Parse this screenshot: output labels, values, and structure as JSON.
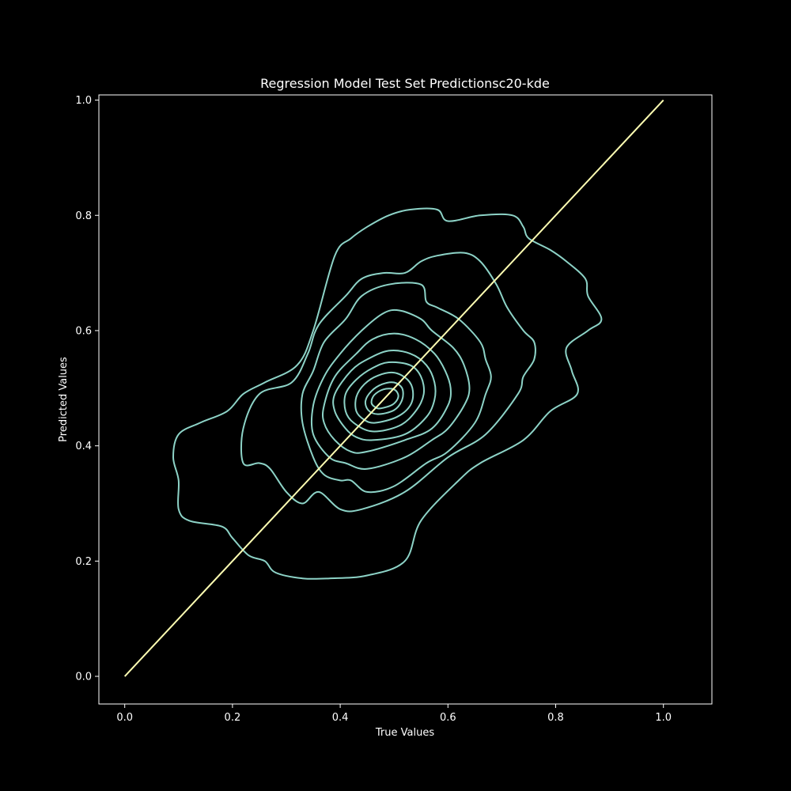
{
  "chart_data": {
    "type": "line",
    "title": "Regression Model Test Set Predictionsc20-kde",
    "xlabel": "True Values",
    "ylabel": "Predicted Values",
    "xlim": [
      -0.048,
      1.09
    ],
    "ylim": [
      -0.048,
      1.009
    ],
    "xticks": [
      "0.0",
      "0.2",
      "0.4",
      "0.6",
      "0.8",
      "1.0"
    ],
    "yticks": [
      "0.0",
      "0.2",
      "0.4",
      "0.6",
      "0.8",
      "1.0"
    ],
    "grid": false,
    "legend": "none",
    "colors": {
      "background": "#000000",
      "foreground": "#ffffff",
      "contour": "#8dd3c7",
      "identity_line": "#ffffb3"
    },
    "identity_line": {
      "x": [
        0.0,
        1.0
      ],
      "y": [
        0.0,
        1.0
      ]
    },
    "kde_contours": [
      {
        "level": 1,
        "points": [
          [
            0.45,
            0.175
          ],
          [
            0.52,
            0.2
          ],
          [
            0.55,
            0.27
          ],
          [
            0.62,
            0.34
          ],
          [
            0.66,
            0.37
          ],
          [
            0.74,
            0.41
          ],
          [
            0.79,
            0.46
          ],
          [
            0.84,
            0.49
          ],
          [
            0.83,
            0.53
          ],
          [
            0.82,
            0.57
          ],
          [
            0.86,
            0.6
          ],
          [
            0.885,
            0.62
          ],
          [
            0.86,
            0.66
          ],
          [
            0.855,
            0.69
          ],
          [
            0.82,
            0.72
          ],
          [
            0.79,
            0.74
          ],
          [
            0.75,
            0.76
          ],
          [
            0.74,
            0.78
          ],
          [
            0.72,
            0.8
          ],
          [
            0.66,
            0.8
          ],
          [
            0.6,
            0.79
          ],
          [
            0.58,
            0.81
          ],
          [
            0.53,
            0.81
          ],
          [
            0.49,
            0.8
          ],
          [
            0.45,
            0.78
          ],
          [
            0.42,
            0.76
          ],
          [
            0.39,
            0.73
          ],
          [
            0.35,
            0.6
          ],
          [
            0.32,
            0.54
          ],
          [
            0.26,
            0.51
          ],
          [
            0.22,
            0.49
          ],
          [
            0.19,
            0.46
          ],
          [
            0.14,
            0.44
          ],
          [
            0.1,
            0.42
          ],
          [
            0.09,
            0.38
          ],
          [
            0.1,
            0.34
          ],
          [
            0.1,
            0.29
          ],
          [
            0.12,
            0.27
          ],
          [
            0.18,
            0.26
          ],
          [
            0.2,
            0.24
          ],
          [
            0.23,
            0.21
          ],
          [
            0.26,
            0.2
          ],
          [
            0.28,
            0.18
          ],
          [
            0.33,
            0.17
          ],
          [
            0.38,
            0.17
          ]
        ]
      },
      {
        "level": 2,
        "points": [
          [
            0.44,
            0.29
          ],
          [
            0.52,
            0.32
          ],
          [
            0.6,
            0.38
          ],
          [
            0.67,
            0.42
          ],
          [
            0.73,
            0.49
          ],
          [
            0.74,
            0.52
          ],
          [
            0.76,
            0.55
          ],
          [
            0.76,
            0.58
          ],
          [
            0.74,
            0.6
          ],
          [
            0.71,
            0.64
          ],
          [
            0.69,
            0.68
          ],
          [
            0.66,
            0.72
          ],
          [
            0.63,
            0.735
          ],
          [
            0.58,
            0.73
          ],
          [
            0.55,
            0.72
          ],
          [
            0.52,
            0.7
          ],
          [
            0.48,
            0.7
          ],
          [
            0.44,
            0.69
          ],
          [
            0.41,
            0.66
          ],
          [
            0.36,
            0.61
          ],
          [
            0.34,
            0.56
          ],
          [
            0.31,
            0.51
          ],
          [
            0.25,
            0.49
          ],
          [
            0.22,
            0.43
          ],
          [
            0.22,
            0.37
          ],
          [
            0.25,
            0.37
          ],
          [
            0.27,
            0.36
          ],
          [
            0.3,
            0.32
          ],
          [
            0.33,
            0.3
          ],
          [
            0.36,
            0.32
          ],
          [
            0.4,
            0.29
          ]
        ]
      },
      {
        "level": 3,
        "points": [
          [
            0.45,
            0.32
          ],
          [
            0.5,
            0.33
          ],
          [
            0.56,
            0.37
          ],
          [
            0.6,
            0.39
          ],
          [
            0.65,
            0.44
          ],
          [
            0.67,
            0.49
          ],
          [
            0.68,
            0.52
          ],
          [
            0.67,
            0.55
          ],
          [
            0.66,
            0.58
          ],
          [
            0.62,
            0.62
          ],
          [
            0.58,
            0.64
          ],
          [
            0.56,
            0.65
          ],
          [
            0.55,
            0.68
          ],
          [
            0.49,
            0.68
          ],
          [
            0.44,
            0.66
          ],
          [
            0.41,
            0.62
          ],
          [
            0.37,
            0.58
          ],
          [
            0.35,
            0.53
          ],
          [
            0.33,
            0.49
          ],
          [
            0.33,
            0.44
          ],
          [
            0.35,
            0.38
          ],
          [
            0.37,
            0.35
          ],
          [
            0.4,
            0.34
          ],
          [
            0.42,
            0.34
          ]
        ]
      },
      {
        "level": 4,
        "points": [
          [
            0.45,
            0.36
          ],
          [
            0.52,
            0.38
          ],
          [
            0.57,
            0.41
          ],
          [
            0.6,
            0.43
          ],
          [
            0.63,
            0.47
          ],
          [
            0.64,
            0.5
          ],
          [
            0.63,
            0.54
          ],
          [
            0.61,
            0.57
          ],
          [
            0.57,
            0.6
          ],
          [
            0.55,
            0.62
          ],
          [
            0.51,
            0.635
          ],
          [
            0.48,
            0.63
          ],
          [
            0.44,
            0.6
          ],
          [
            0.4,
            0.56
          ],
          [
            0.37,
            0.52
          ],
          [
            0.35,
            0.47
          ],
          [
            0.35,
            0.42
          ],
          [
            0.38,
            0.38
          ],
          [
            0.41,
            0.37
          ]
        ]
      },
      {
        "level": 5,
        "points": [
          [
            0.45,
            0.39
          ],
          [
            0.52,
            0.41
          ],
          [
            0.57,
            0.43
          ],
          [
            0.6,
            0.47
          ],
          [
            0.605,
            0.5
          ],
          [
            0.595,
            0.53
          ],
          [
            0.575,
            0.56
          ],
          [
            0.54,
            0.585
          ],
          [
            0.5,
            0.595
          ],
          [
            0.46,
            0.585
          ],
          [
            0.43,
            0.56
          ],
          [
            0.39,
            0.52
          ],
          [
            0.37,
            0.47
          ],
          [
            0.37,
            0.44
          ],
          [
            0.39,
            0.41
          ],
          [
            0.42,
            0.39
          ]
        ]
      },
      {
        "level": 6,
        "points": [
          [
            0.46,
            0.41
          ],
          [
            0.52,
            0.42
          ],
          [
            0.56,
            0.45
          ],
          [
            0.575,
            0.48
          ],
          [
            0.575,
            0.51
          ],
          [
            0.56,
            0.54
          ],
          [
            0.53,
            0.56
          ],
          [
            0.49,
            0.565
          ],
          [
            0.45,
            0.55
          ],
          [
            0.42,
            0.53
          ],
          [
            0.39,
            0.49
          ],
          [
            0.39,
            0.46
          ],
          [
            0.41,
            0.43
          ],
          [
            0.43,
            0.415
          ]
        ]
      },
      {
        "level": 7,
        "points": [
          [
            0.46,
            0.425
          ],
          [
            0.51,
            0.435
          ],
          [
            0.54,
            0.46
          ],
          [
            0.555,
            0.49
          ],
          [
            0.55,
            0.52
          ],
          [
            0.53,
            0.54
          ],
          [
            0.49,
            0.545
          ],
          [
            0.46,
            0.535
          ],
          [
            0.43,
            0.515
          ],
          [
            0.41,
            0.49
          ],
          [
            0.41,
            0.46
          ],
          [
            0.425,
            0.44
          ]
        ]
      },
      {
        "level": 8,
        "points": [
          [
            0.465,
            0.44
          ],
          [
            0.505,
            0.45
          ],
          [
            0.53,
            0.47
          ],
          [
            0.535,
            0.495
          ],
          [
            0.525,
            0.515
          ],
          [
            0.5,
            0.527
          ],
          [
            0.47,
            0.522
          ],
          [
            0.445,
            0.507
          ],
          [
            0.43,
            0.485
          ],
          [
            0.43,
            0.46
          ],
          [
            0.445,
            0.445
          ]
        ]
      },
      {
        "level": 9,
        "points": [
          [
            0.47,
            0.455
          ],
          [
            0.5,
            0.462
          ],
          [
            0.515,
            0.48
          ],
          [
            0.515,
            0.5
          ],
          [
            0.5,
            0.51
          ],
          [
            0.478,
            0.507
          ],
          [
            0.458,
            0.495
          ],
          [
            0.447,
            0.478
          ],
          [
            0.452,
            0.462
          ]
        ]
      },
      {
        "level": 10,
        "points": [
          [
            0.475,
            0.465
          ],
          [
            0.498,
            0.472
          ],
          [
            0.508,
            0.486
          ],
          [
            0.5,
            0.498
          ],
          [
            0.48,
            0.498
          ],
          [
            0.463,
            0.488
          ],
          [
            0.458,
            0.475
          ],
          [
            0.465,
            0.467
          ]
        ]
      }
    ]
  }
}
